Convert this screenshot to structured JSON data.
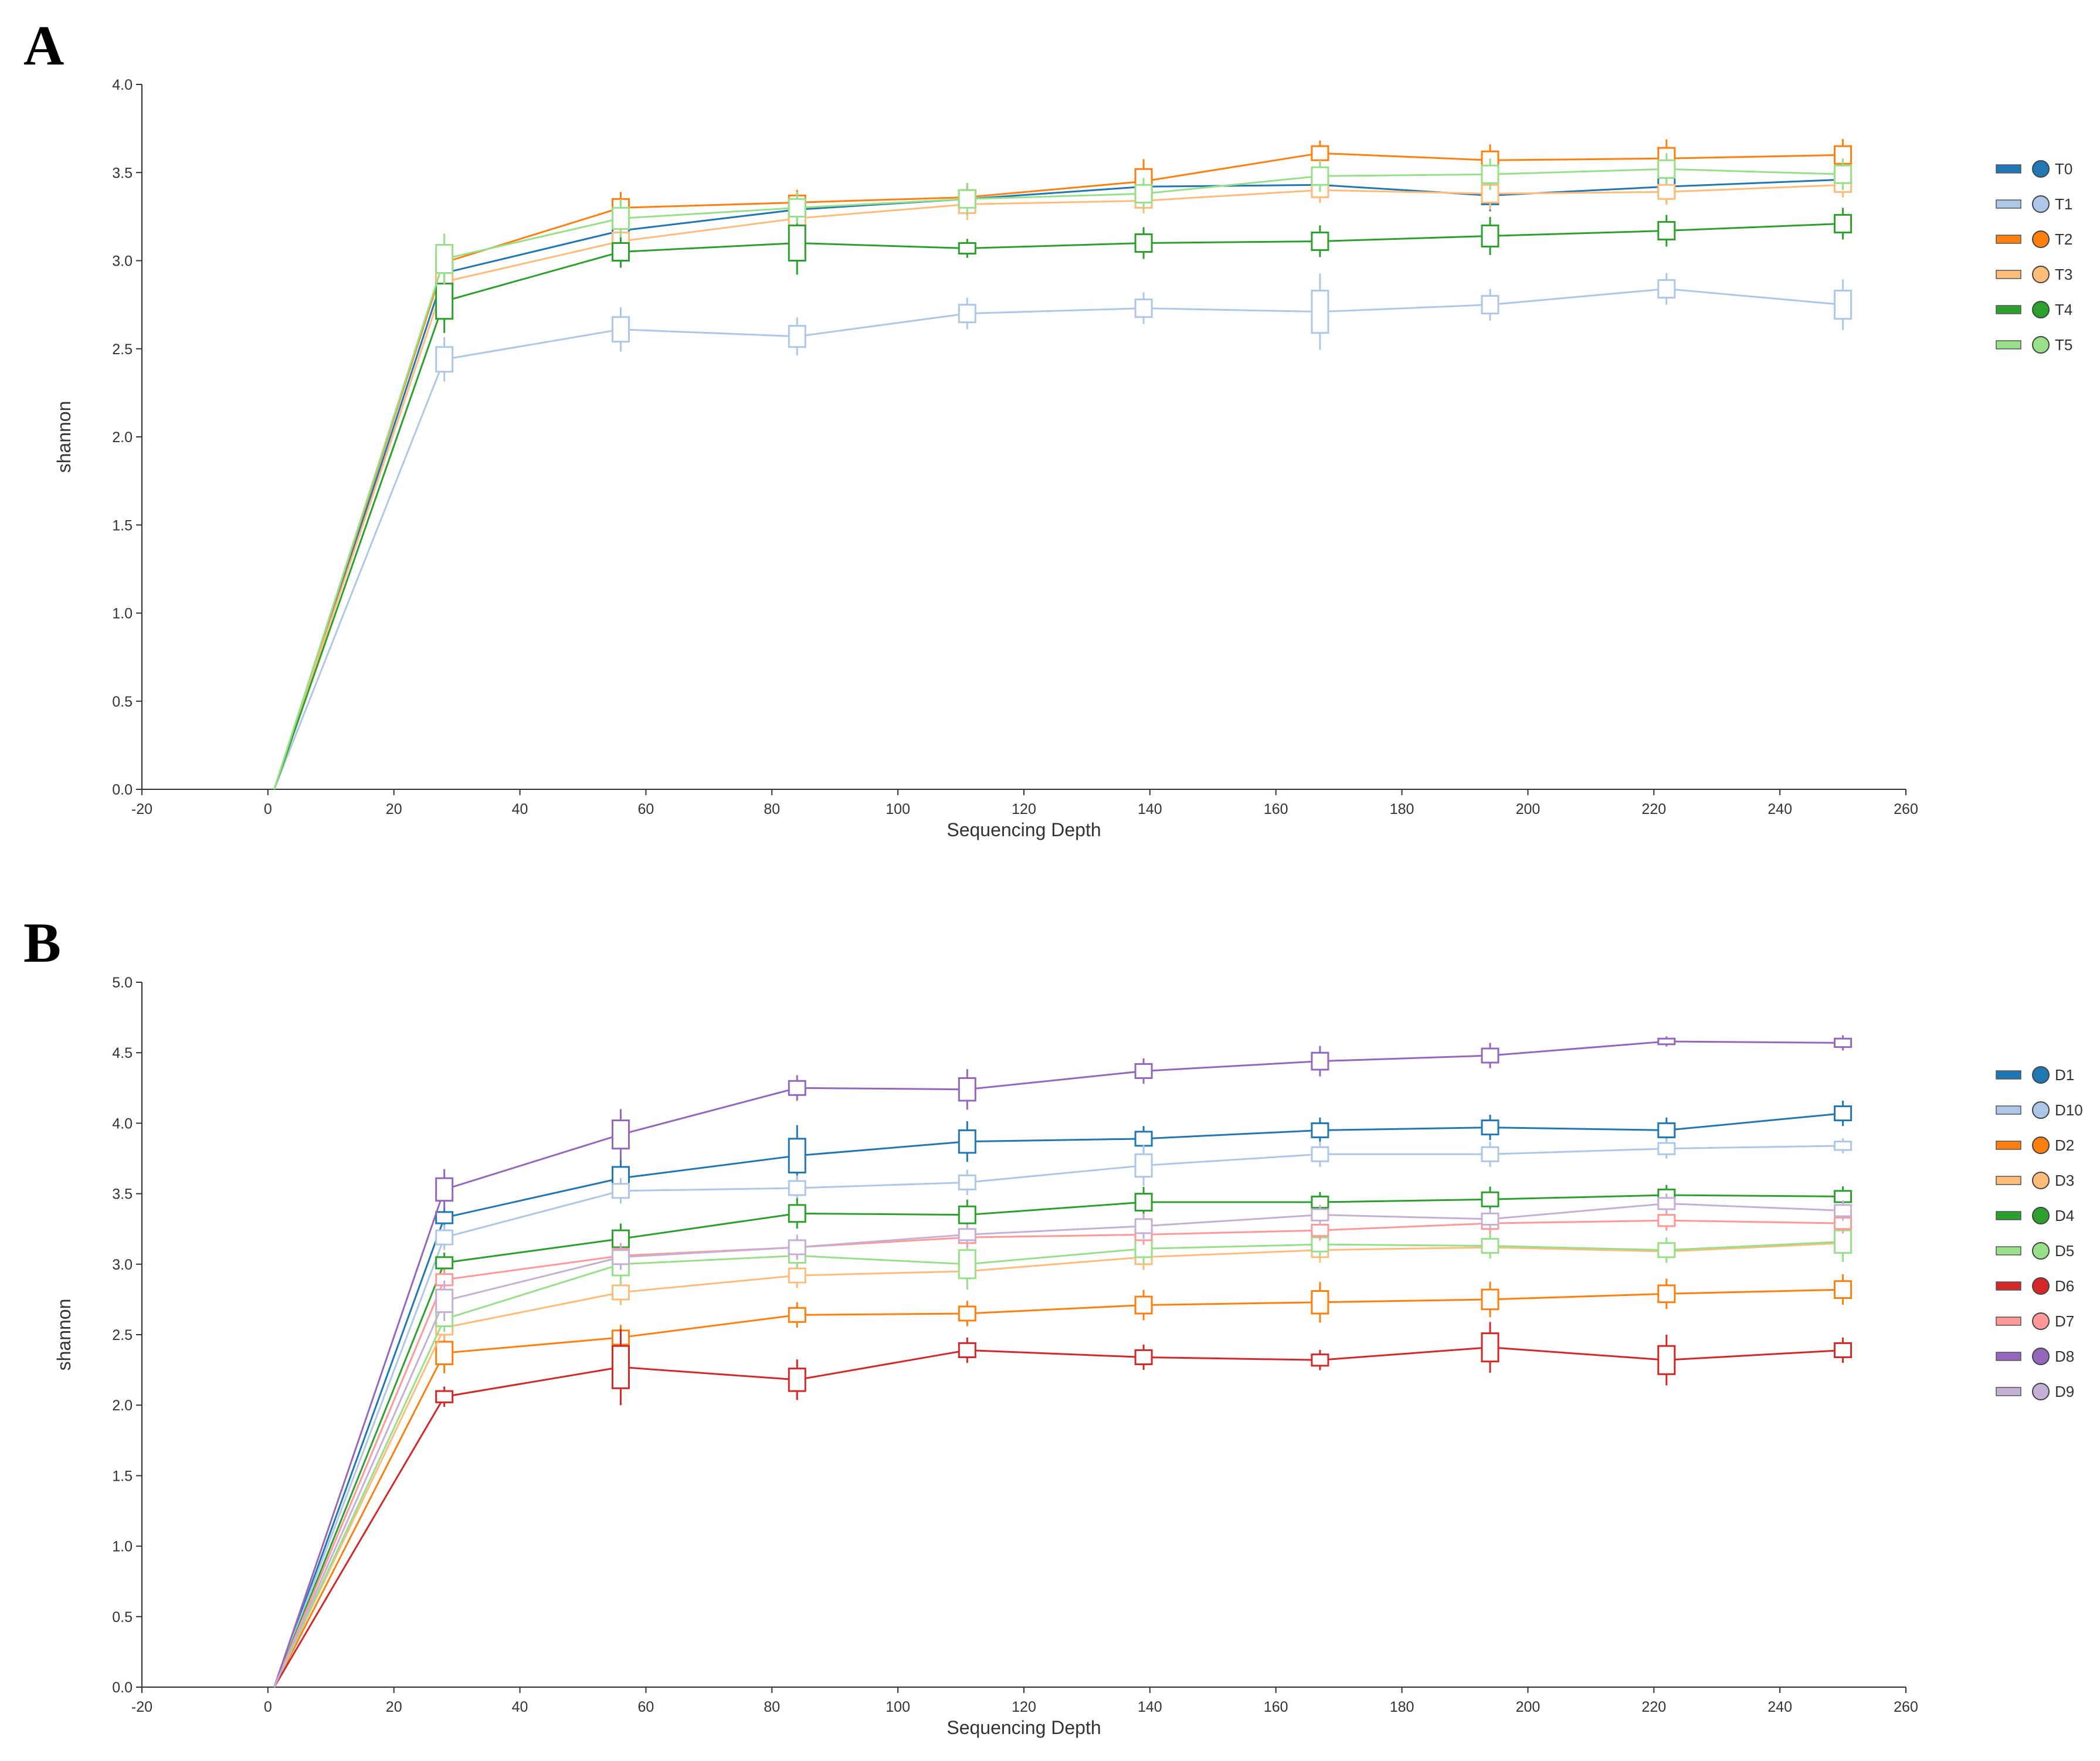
{
  "chart_data": [
    {
      "panel": "A",
      "type": "line",
      "xlabel": "Sequencing Depth",
      "ylabel": "shannon",
      "xlim": [
        -20,
        260
      ],
      "ylim": [
        0,
        4.0
      ],
      "xticks": [
        -20,
        0,
        20,
        40,
        60,
        80,
        100,
        120,
        140,
        160,
        180,
        200,
        220,
        240,
        260
      ],
      "yticks": [
        "0.0",
        "0.5",
        "1.0",
        "1.5",
        "2.0",
        "2.5",
        "3.0",
        "3.5",
        "4.0"
      ],
      "legend_position": "right",
      "x": [
        1,
        28,
        56,
        84,
        111,
        139,
        167,
        194,
        222,
        250
      ],
      "series": [
        {
          "name": "T0",
          "color": "#1f77b4",
          "values": [
            0,
            2.93,
            3.17,
            3.29,
            3.35,
            3.42,
            3.43,
            3.37,
            3.42,
            3.46
          ],
          "spread": [
            0,
            0.06,
            0.06,
            0.05,
            0.05,
            0.05,
            0.05,
            0.05,
            0.05,
            0.05
          ]
        },
        {
          "name": "T1",
          "color": "#aec7e8",
          "values": [
            0,
            2.44,
            2.61,
            2.57,
            2.7,
            2.73,
            2.71,
            2.75,
            2.84,
            2.75
          ],
          "spread": [
            0,
            0.07,
            0.07,
            0.06,
            0.05,
            0.05,
            0.12,
            0.05,
            0.05,
            0.08
          ]
        },
        {
          "name": "T2",
          "color": "#ff7f0e",
          "values": [
            0,
            2.99,
            3.3,
            3.33,
            3.36,
            3.45,
            3.61,
            3.57,
            3.58,
            3.6
          ],
          "spread": [
            0,
            0.06,
            0.05,
            0.04,
            0.04,
            0.07,
            0.04,
            0.05,
            0.06,
            0.05
          ]
        },
        {
          "name": "T3",
          "color": "#ffbb78",
          "values": [
            0,
            2.88,
            3.11,
            3.24,
            3.32,
            3.34,
            3.4,
            3.38,
            3.39,
            3.43
          ],
          "spread": [
            0,
            0.05,
            0.05,
            0.05,
            0.05,
            0.04,
            0.04,
            0.05,
            0.04,
            0.04
          ]
        },
        {
          "name": "T4",
          "color": "#2ca02c",
          "values": [
            0,
            2.77,
            3.05,
            3.1,
            3.07,
            3.1,
            3.11,
            3.14,
            3.17,
            3.21
          ],
          "spread": [
            0,
            0.1,
            0.05,
            0.1,
            0.03,
            0.05,
            0.05,
            0.06,
            0.05,
            0.05
          ]
        },
        {
          "name": "T5",
          "color": "#98df8a",
          "values": [
            0,
            3.01,
            3.24,
            3.3,
            3.35,
            3.38,
            3.48,
            3.49,
            3.52,
            3.49
          ],
          "spread": [
            0,
            0.08,
            0.06,
            0.05,
            0.05,
            0.05,
            0.05,
            0.05,
            0.05,
            0.05
          ]
        }
      ]
    },
    {
      "panel": "B",
      "type": "line",
      "xlabel": "Sequencing Depth",
      "ylabel": "shannon",
      "xlim": [
        -20,
        260
      ],
      "ylim": [
        0,
        5.0
      ],
      "xticks": [
        -20,
        0,
        20,
        40,
        60,
        80,
        100,
        120,
        140,
        160,
        180,
        200,
        220,
        240,
        260
      ],
      "yticks": [
        "0.0",
        "0.5",
        "1.0",
        "1.5",
        "2.0",
        "2.5",
        "3.0",
        "3.5",
        "4.0",
        "4.5",
        "5.0"
      ],
      "legend_position": "right",
      "x": [
        1,
        28,
        56,
        84,
        111,
        139,
        167,
        194,
        222,
        250
      ],
      "series": [
        {
          "name": "D1",
          "color": "#1f77b4",
          "values": [
            0,
            3.33,
            3.61,
            3.77,
            3.87,
            3.89,
            3.95,
            3.97,
            3.95,
            4.07
          ],
          "spread": [
            0,
            0.04,
            0.08,
            0.12,
            0.08,
            0.05,
            0.05,
            0.05,
            0.05,
            0.05
          ]
        },
        {
          "name": "D10",
          "color": "#aec7e8",
          "values": [
            0,
            3.19,
            3.52,
            3.54,
            3.58,
            3.7,
            3.78,
            3.78,
            3.82,
            3.84
          ],
          "spread": [
            0,
            0.05,
            0.05,
            0.05,
            0.05,
            0.08,
            0.05,
            0.05,
            0.04,
            0.03
          ]
        },
        {
          "name": "D2",
          "color": "#ff7f0e",
          "values": [
            0,
            2.37,
            2.48,
            2.64,
            2.65,
            2.71,
            2.73,
            2.75,
            2.79,
            2.82
          ],
          "spread": [
            0,
            0.08,
            0.05,
            0.05,
            0.05,
            0.06,
            0.08,
            0.07,
            0.06,
            0.06
          ]
        },
        {
          "name": "D3",
          "color": "#ffbb78",
          "values": [
            0,
            2.55,
            2.8,
            2.92,
            2.95,
            3.05,
            3.1,
            3.12,
            3.09,
            3.15
          ],
          "spread": [
            0,
            0.05,
            0.05,
            0.05,
            0.05,
            0.05,
            0.05,
            0.04,
            0.04,
            0.04
          ]
        },
        {
          "name": "D4",
          "color": "#2ca02c",
          "values": [
            0,
            3.01,
            3.18,
            3.36,
            3.35,
            3.44,
            3.44,
            3.46,
            3.49,
            3.48
          ],
          "spread": [
            0,
            0.04,
            0.06,
            0.06,
            0.06,
            0.06,
            0.04,
            0.05,
            0.04,
            0.04
          ]
        },
        {
          "name": "D5",
          "color": "#98df8a",
          "values": [
            0,
            2.61,
            3.0,
            3.06,
            3.0,
            3.11,
            3.14,
            3.13,
            3.1,
            3.16
          ],
          "spread": [
            0,
            0.05,
            0.08,
            0.05,
            0.1,
            0.06,
            0.05,
            0.05,
            0.05,
            0.08
          ]
        },
        {
          "name": "D6",
          "color": "#d62728",
          "values": [
            0,
            2.06,
            2.27,
            2.18,
            2.39,
            2.34,
            2.32,
            2.41,
            2.32,
            2.39
          ],
          "spread": [
            0,
            0.04,
            0.15,
            0.08,
            0.05,
            0.05,
            0.04,
            0.1,
            0.1,
            0.05
          ]
        },
        {
          "name": "D7",
          "color": "#ff9896",
          "values": [
            0,
            2.89,
            3.06,
            3.12,
            3.19,
            3.21,
            3.24,
            3.29,
            3.31,
            3.29
          ],
          "spread": [
            0,
            0.04,
            0.05,
            0.04,
            0.04,
            0.04,
            0.04,
            0.04,
            0.04,
            0.04
          ]
        },
        {
          "name": "D8",
          "color": "#9467bd",
          "values": [
            0,
            3.53,
            3.92,
            4.25,
            4.24,
            4.37,
            4.44,
            4.48,
            4.58,
            4.57
          ],
          "spread": [
            0,
            0.08,
            0.1,
            0.05,
            0.08,
            0.05,
            0.06,
            0.05,
            0.02,
            0.03
          ]
        },
        {
          "name": "D9",
          "color": "#c5b0d5",
          "values": [
            0,
            2.74,
            3.05,
            3.12,
            3.21,
            3.27,
            3.35,
            3.32,
            3.43,
            3.38
          ],
          "spread": [
            0,
            0.08,
            0.05,
            0.05,
            0.04,
            0.05,
            0.04,
            0.04,
            0.04,
            0.04
          ]
        }
      ]
    }
  ]
}
